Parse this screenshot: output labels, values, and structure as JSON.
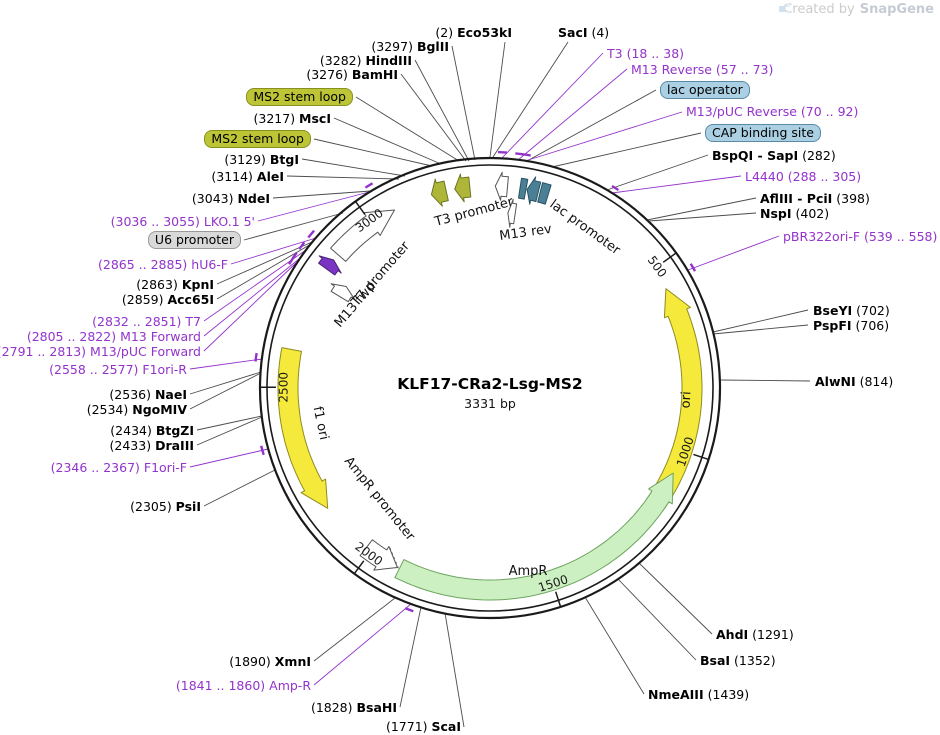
{
  "watermark": {
    "prefix": "Created by",
    "brand": "SnapGene"
  },
  "plasmid": {
    "title": "KLF17-CRa2-Lsg-MS2",
    "size_label": "3331 bp",
    "size_bp": 3331,
    "ticks": [
      500,
      1000,
      1500,
      2000,
      2500,
      3000
    ],
    "features": [
      {
        "name": "ori",
        "start": 560,
        "end": 1160,
        "dir": "ccw",
        "type": "arrow",
        "lane": 0,
        "fill": "#f5e93c",
        "stroke": "#8f8c20"
      },
      {
        "name": "f1 ori",
        "start": 2160,
        "end": 2600,
        "dir": "ccw",
        "type": "arrow",
        "lane": 0,
        "fill": "#f5e93c",
        "stroke": "#8f8c20"
      },
      {
        "name": "AmpR",
        "start": 1063,
        "end": 1912,
        "dir": "ccw",
        "type": "arrow",
        "lane": 0,
        "fill": "#cdf0c3",
        "stroke": "#6da45f"
      },
      {
        "name": "AmpR promoter",
        "start": 1918,
        "end": 2015,
        "dir": "ccw",
        "type": "arrow",
        "lane": 0,
        "fill": "#ffffff",
        "stroke": "#555555"
      },
      {
        "name": "U6 promoter",
        "start": 2880,
        "end": 3070,
        "dir": "cw",
        "type": "arrow",
        "lane": 0,
        "fill": "#ffffff",
        "stroke": "#555555"
      },
      {
        "name": "T7 promoter",
        "start": 2832,
        "end": 2862,
        "dir": "cw",
        "type": "arrow",
        "lane": 0,
        "fill": "#7a36c2",
        "stroke": "#4c2178"
      },
      {
        "name": "M13 fwd",
        "start": 2788,
        "end": 2824,
        "dir": "cw",
        "type": "arrow",
        "lane": 1,
        "fill": "#ffffff",
        "stroke": "#555555"
      },
      {
        "name": "MS2 stem loop",
        "start": 3175,
        "end": 3215,
        "dir": "ccw",
        "type": "arrow",
        "lane": 0,
        "fill": "#aeb63a",
        "stroke": "#6e7420"
      },
      {
        "name": "MS2 stem loop",
        "start": 3238,
        "end": 3278,
        "dir": "ccw",
        "type": "arrow",
        "lane": 0,
        "fill": "#aeb63a",
        "stroke": "#6e7420"
      },
      {
        "name": "T3 promoter",
        "start": 14,
        "end": 46,
        "dir": "ccw",
        "type": "arrow",
        "lane": 0,
        "fill": "#ffffff",
        "stroke": "#555555"
      },
      {
        "name": "M13 rev",
        "start": 54,
        "end": 76,
        "dir": "ccw",
        "type": "arrow",
        "lane": 1,
        "fill": "#ffffff",
        "stroke": "#555555"
      },
      {
        "name": "lac operator",
        "start": 79,
        "end": 95,
        "dir": null,
        "type": "box",
        "lane": 0,
        "fill": "#4a8096",
        "stroke": "#2c5163"
      },
      {
        "name": "lac promoter",
        "start": 98,
        "end": 128,
        "dir": "ccw",
        "type": "arrow",
        "lane": 0,
        "fill": "#4a8096",
        "stroke": "#2c5163"
      },
      {
        "name": "CAP binding site",
        "start": 133,
        "end": 155,
        "dir": null,
        "type": "box",
        "lane": 0,
        "fill": "#4a8096",
        "stroke": "#2c5163"
      }
    ],
    "primers": [
      {
        "name": "T3",
        "start": 18,
        "end": 38
      },
      {
        "name": "M13 Reverse",
        "start": 57,
        "end": 73
      },
      {
        "name": "M13/pUC Reverse",
        "start": 70,
        "end": 92
      },
      {
        "name": "L4440",
        "start": 288,
        "end": 305
      },
      {
        "name": "pBR322ori-F",
        "start": 539,
        "end": 558
      },
      {
        "name": "Amp-R",
        "start": 1841,
        "end": 1860
      },
      {
        "name": "F1ori-F",
        "start": 2346,
        "end": 2367
      },
      {
        "name": "F1ori-R",
        "start": 2558,
        "end": 2577
      },
      {
        "name": "M13/pUC Forward",
        "start": 2791,
        "end": 2813
      },
      {
        "name": "M13 Forward",
        "start": 2805,
        "end": 2822
      },
      {
        "name": "T7",
        "start": 2832,
        "end": 2851
      },
      {
        "name": "hU6-F",
        "start": 2865,
        "end": 2885
      },
      {
        "name": "LKO.1 5'",
        "start": 3036,
        "end": 3055
      }
    ]
  },
  "inner_labels": {
    "t3_promoter": "T3 promoter",
    "m13_rev": "M13 rev",
    "lac_promoter": "lac promoter",
    "t7_promoter": "T7 promoter",
    "m13_fwd": "M13 fwd",
    "ori": "ori",
    "f1_ori": "f1 ori",
    "ampr": "AmpR",
    "ampr_promoter": "AmpR promoter"
  },
  "labels": {
    "left": [
      {
        "pre": "(2) ",
        "name": "Eco53kI",
        "kind": "enzyme"
      },
      {
        "pre": "(3297) ",
        "name": "BglII",
        "kind": "enzyme"
      },
      {
        "pre": "(3282) ",
        "name": "HindIII",
        "kind": "enzyme"
      },
      {
        "pre": "(3276) ",
        "name": "BamHI",
        "kind": "enzyme"
      },
      {
        "name": "MS2 stem loop",
        "kind": "badge-olive"
      },
      {
        "pre": "(3217) ",
        "name": "MscI",
        "kind": "enzyme"
      },
      {
        "name": "MS2 stem loop",
        "kind": "badge-olive"
      },
      {
        "pre": "(3129) ",
        "name": "BtgI",
        "kind": "enzyme"
      },
      {
        "pre": "(3114) ",
        "name": "AleI",
        "kind": "enzyme"
      },
      {
        "pre": "(3043) ",
        "name": "NdeI",
        "kind": "enzyme"
      },
      {
        "pre": "(3036 .. 3055) ",
        "name": "LKO.1 5'",
        "kind": "primer"
      },
      {
        "name": "U6 promoter",
        "kind": "badge-gray"
      },
      {
        "pre": "(2865 .. 2885) ",
        "name": "hU6-F",
        "kind": "primer"
      },
      {
        "pre": "(2863) ",
        "name": "KpnI",
        "kind": "enzyme"
      },
      {
        "pre": "(2859) ",
        "name": "Acc65I",
        "kind": "enzyme"
      },
      {
        "pre": "(2832 .. 2851) ",
        "name": "T7",
        "kind": "primer"
      },
      {
        "pre": "(2805 .. 2822) ",
        "name": "M13 Forward",
        "kind": "primer"
      },
      {
        "pre": "(2791 .. 2813) ",
        "name": "M13/pUC Forward",
        "kind": "primer"
      },
      {
        "pre": "(2558 .. 2577) ",
        "name": "F1ori-R",
        "kind": "primer"
      },
      {
        "pre": "(2536) ",
        "name": "NaeI",
        "kind": "enzyme"
      },
      {
        "pre": "(2534) ",
        "name": "NgoMIV",
        "kind": "enzyme"
      },
      {
        "pre": "(2434) ",
        "name": "BtgZI",
        "kind": "enzyme"
      },
      {
        "pre": "(2433) ",
        "name": "DraIII",
        "kind": "enzyme"
      },
      {
        "pre": "(2346 .. 2367) ",
        "name": "F1ori-F",
        "kind": "primer"
      },
      {
        "pre": "(2305) ",
        "name": "PsiI",
        "kind": "enzyme"
      },
      {
        "pre": "(1890) ",
        "name": "XmnI",
        "kind": "enzyme"
      },
      {
        "pre": "(1841 .. 1860) ",
        "name": "Amp-R",
        "kind": "primer"
      },
      {
        "pre": "(1828) ",
        "name": "BsaHI",
        "kind": "enzyme"
      },
      {
        "pre": "(1771) ",
        "name": "ScaI",
        "kind": "enzyme"
      }
    ],
    "right": [
      {
        "name": "SacI",
        "post": " (4)",
        "kind": "enzyme"
      },
      {
        "name": "T3",
        "post": " (18 .. 38)",
        "kind": "primer"
      },
      {
        "name": "M13 Reverse",
        "post": " (57 .. 73)",
        "kind": "primer"
      },
      {
        "name": "lac operator",
        "kind": "badge-blue"
      },
      {
        "name": "M13/pUC Reverse",
        "post": " (70 .. 92)",
        "kind": "primer"
      },
      {
        "name": "CAP binding site",
        "kind": "badge-blue"
      },
      {
        "name": "BspQI - SapI",
        "post": " (282)",
        "kind": "enzyme"
      },
      {
        "name": "L4440",
        "post": " (288 .. 305)",
        "kind": "primer"
      },
      {
        "name": "AflIII - PciI",
        "post": " (398)",
        "kind": "enzyme"
      },
      {
        "name": "NspI",
        "post": " (402)",
        "kind": "enzyme"
      },
      {
        "name": "pBR322ori-F",
        "post": " (539 .. 558)",
        "kind": "primer"
      },
      {
        "name": "BseYI",
        "post": " (702)",
        "kind": "enzyme"
      },
      {
        "name": "PspFI",
        "post": " (706)",
        "kind": "enzyme"
      },
      {
        "name": "AlwNI",
        "post": " (814)",
        "kind": "enzyme"
      },
      {
        "name": "AhdI",
        "post": " (1291)",
        "kind": "enzyme"
      },
      {
        "name": "BsaI",
        "post": " (1352)",
        "kind": "enzyme"
      },
      {
        "name": "NmeAIII",
        "post": " (1439)",
        "kind": "enzyme"
      }
    ]
  }
}
